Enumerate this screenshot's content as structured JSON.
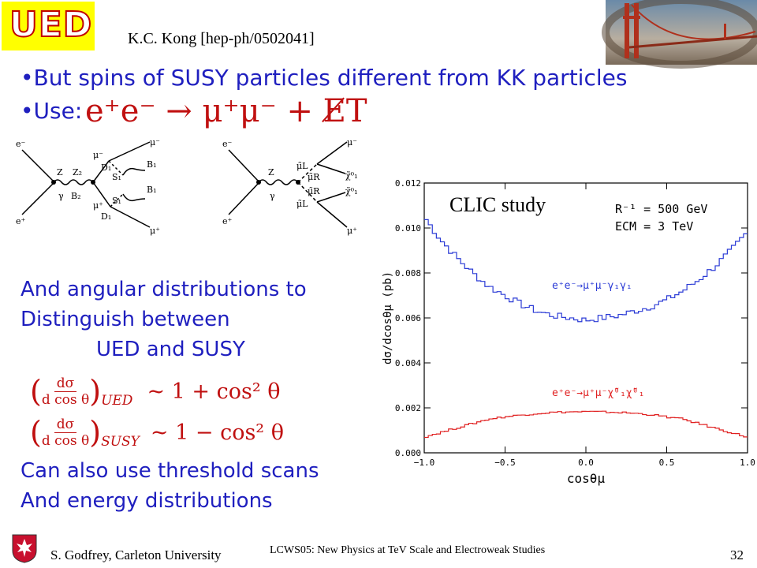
{
  "header": {
    "logo_text": "UED",
    "citation": "K.C. Kong [hep-ph/0502041]"
  },
  "bullets": [
    "•But spins of SUSY particles different from KK particles",
    "•Use:"
  ],
  "use_equation": "e⁺e⁻ → μ⁺μ⁻ + E̸T",
  "left_text": {
    "line1": "And angular distributions to",
    "line2": "Distinguish between",
    "line3": "UED and SUSY",
    "line4": "Can also use threshold scans",
    "line5": "And energy distributions"
  },
  "formulas": {
    "ued_frac_num": "dσ",
    "ued_frac_den": "d cos θ",
    "ued_sub": "UED",
    "ued_rhs": "~ 1 + cos² θ",
    "susy_frac_num": "dσ",
    "susy_frac_den": "d cos θ",
    "susy_sub": "SUSY",
    "susy_rhs": "~ 1 − cos² θ"
  },
  "diagram1": {
    "labels": [
      "e⁻",
      "e⁺",
      "Z",
      "γ",
      "Z₂",
      "B₂",
      "μ⁻",
      "D₁",
      "S₁",
      "μ⁺",
      "B₁",
      "B₁",
      "μ⁻",
      "μ⁺",
      "D₁",
      "S₁"
    ]
  },
  "diagram2": {
    "labels": [
      "e⁻",
      "e⁺",
      "Z",
      "γ",
      "μ̃L",
      "μ̃R",
      "μ̃R",
      "μ̃L",
      "μ⁻",
      "μ⁺",
      "χ̃⁰₁",
      "χ̃⁰₁"
    ]
  },
  "chart_data": {
    "type": "line",
    "title": "",
    "annotation": "CLIC study",
    "params_line1": "R⁻¹ = 500 GeV",
    "params_line2": "ECM = 3 TeV",
    "xlabel": "cosθμ",
    "ylabel": "dσ/dcosθμ (pb)",
    "xlim": [
      -1.0,
      1.0
    ],
    "ylim": [
      0.0,
      0.012
    ],
    "x_ticks": [
      "−1.0",
      "−0.5",
      "0.0",
      "0.5",
      "1.0"
    ],
    "y_ticks": [
      "0.000",
      "0.002",
      "0.004",
      "0.006",
      "0.008",
      "0.010",
      "0.012"
    ],
    "x": [
      -1.0,
      -0.9,
      -0.8,
      -0.7,
      -0.6,
      -0.5,
      -0.4,
      -0.3,
      -0.2,
      -0.1,
      0.0,
      0.1,
      0.2,
      0.3,
      0.4,
      0.5,
      0.6,
      0.7,
      0.8,
      0.9,
      1.0
    ],
    "series": [
      {
        "label": "e⁺e⁻→μ⁺μ⁻γ₁γ₁",
        "color": "#2b3bd6",
        "values": [
          0.0105,
          0.0095,
          0.0087,
          0.008,
          0.0074,
          0.007,
          0.0066,
          0.0063,
          0.0061,
          0.006,
          0.0059,
          0.006,
          0.0061,
          0.0063,
          0.0065,
          0.0068,
          0.0072,
          0.0077,
          0.0083,
          0.009,
          0.0098
        ]
      },
      {
        "label": "e⁺e⁻→μ⁺μ⁻χ̃⁰₁χ̃⁰₁",
        "color": "#e02020",
        "values": [
          0.0007,
          0.0009,
          0.0011,
          0.0013,
          0.0015,
          0.0016,
          0.00168,
          0.00175,
          0.0018,
          0.00182,
          0.00183,
          0.00182,
          0.0018,
          0.00176,
          0.0017,
          0.0016,
          0.0015,
          0.0013,
          0.0011,
          0.0009,
          0.0007
        ]
      }
    ]
  },
  "footer": {
    "author": "S. Godfrey, Carleton University",
    "conference": "LCWS05: New Physics at TeV Scale and Electroweak Studies",
    "page": "32"
  }
}
